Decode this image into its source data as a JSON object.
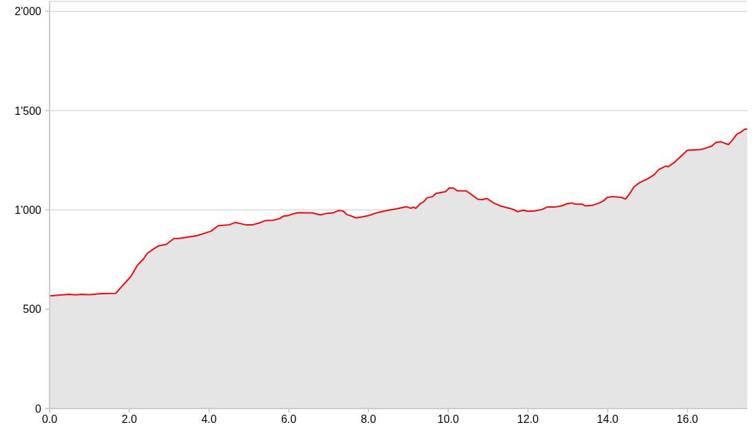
{
  "chart_data": {
    "type": "area",
    "x": [
      0,
      0.48,
      0.66,
      0.8,
      1.0,
      1.29,
      1.66,
      1.81,
      2.04,
      2.21,
      2.36,
      2.45,
      2.61,
      2.74,
      2.93,
      3.12,
      3.25,
      3.71,
      4.05,
      4.23,
      4.51,
      4.66,
      4.92,
      5.09,
      5.26,
      5.41,
      5.61,
      5.78,
      5.87,
      5.98,
      6.07,
      6.24,
      6.47,
      6.59,
      6.79,
      6.96,
      7.11,
      7.25,
      7.37,
      7.45,
      7.57,
      7.68,
      7.86,
      8.03,
      8.17,
      8.26,
      8.49,
      8.72,
      8.95,
      9.07,
      9.12,
      9.19,
      9.3,
      9.38,
      9.47,
      9.61,
      9.69,
      9.93,
      10.03,
      10.13,
      10.23,
      10.45,
      10.62,
      10.74,
      10.85,
      10.97,
      11.14,
      11.31,
      11.54,
      11.66,
      11.74,
      11.89,
      12.0,
      12.17,
      12.35,
      12.49,
      12.69,
      12.84,
      12.98,
      13.1,
      13.18,
      13.36,
      13.44,
      13.62,
      13.79,
      13.9,
      13.99,
      14.13,
      14.34,
      14.45,
      14.57,
      14.66,
      14.8,
      15.0,
      15.17,
      15.28,
      15.46,
      15.52,
      15.69,
      16.0,
      16.32,
      16.38,
      16.61,
      16.72,
      16.84,
      17.03,
      17.13,
      17.24,
      17.33,
      17.44,
      17.5
    ],
    "series": [
      {
        "color": "#ff0000",
        "values": [
          567,
          575,
          572,
          575,
          573,
          578,
          580,
          614,
          665,
          723,
          754,
          781,
          804,
          819,
          827,
          856,
          856,
          871,
          893,
          920,
          925,
          937,
          925,
          925,
          934,
          946,
          948,
          957,
          969,
          971,
          978,
          986,
          985,
          985,
          975,
          983,
          985,
          997,
          994,
          977,
          969,
          960,
          965,
          973,
          983,
          988,
          998,
          1006,
          1016,
          1008,
          1014,
          1008,
          1032,
          1040,
          1061,
          1067,
          1083,
          1092,
          1111,
          1110,
          1096,
          1096,
          1072,
          1054,
          1052,
          1058,
          1035,
          1020,
          1008,
          1000,
          991,
          998,
          993,
          995,
          1002,
          1015,
          1015,
          1020,
          1031,
          1035,
          1029,
          1029,
          1020,
          1023,
          1035,
          1046,
          1063,
          1067,
          1063,
          1055,
          1087,
          1116,
          1137,
          1156,
          1178,
          1203,
          1221,
          1217,
          1242,
          1300,
          1304,
          1306,
          1321,
          1340,
          1343,
          1329,
          1352,
          1381,
          1390,
          1407,
          1407
        ]
      }
    ],
    "xlim": [
      0,
      17.5
    ],
    "xticks": [
      {
        "value": 0,
        "label": "0.0"
      },
      {
        "value": 2,
        "label": "2.0"
      },
      {
        "value": 4,
        "label": "4.0"
      },
      {
        "value": 6,
        "label": "6.0"
      },
      {
        "value": 8,
        "label": "8.0"
      },
      {
        "value": 10,
        "label": "10.0"
      },
      {
        "value": 12,
        "label": "12.0"
      },
      {
        "value": 14,
        "label": "14.0"
      },
      {
        "value": 16,
        "label": "16.0"
      }
    ],
    "ylim": [
      0,
      2050
    ],
    "yticks": [
      0,
      500,
      {
        "value": 1000,
        "label": "1'000"
      },
      {
        "value": 1500,
        "label": "1'500"
      },
      {
        "value": 2000,
        "label": "2'000"
      }
    ],
    "grid": "y"
  }
}
